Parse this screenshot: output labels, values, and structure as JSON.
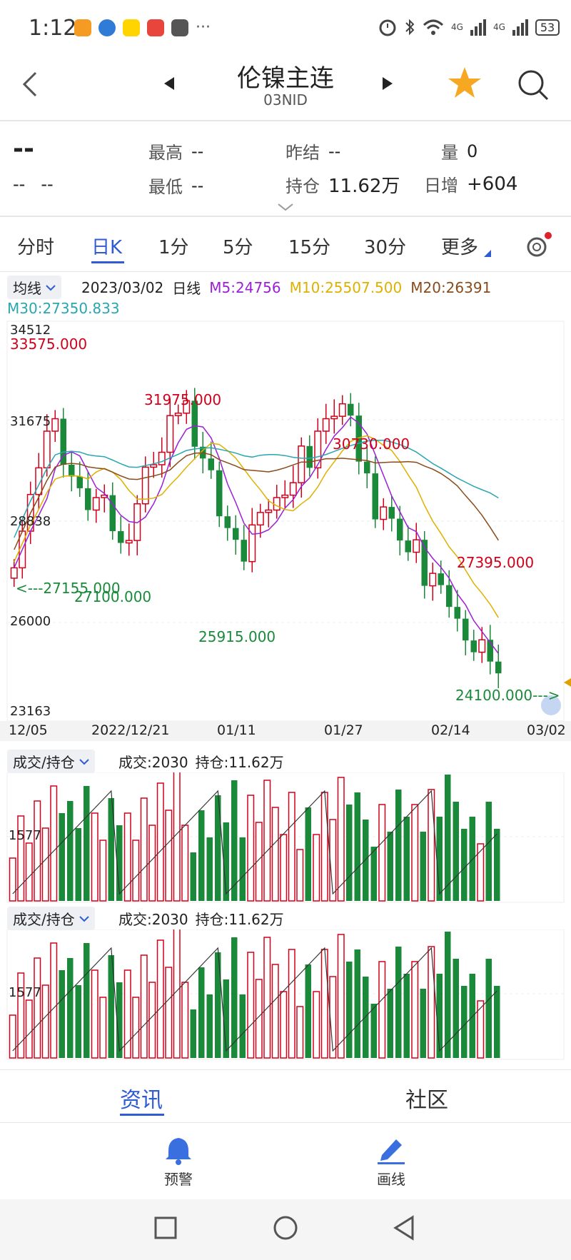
{
  "status_bar": {
    "time": "1:12",
    "app_icons": [
      "video-app",
      "browser-app",
      "meituan-app",
      "notes-app",
      "futures-app"
    ],
    "more": "···",
    "network_1": "4G",
    "network_2": "4G",
    "battery": "53"
  },
  "header": {
    "title": "伦镍主连",
    "code": "03NID"
  },
  "quote": {
    "price": "--",
    "change": "--",
    "change_pct": "--",
    "high_label": "最高",
    "high_value": "--",
    "low_label": "最低",
    "low_value": "--",
    "prev_settle_label": "昨结",
    "prev_settle_value": "--",
    "open_interest_label": "持仓",
    "open_interest_value": "11.62万",
    "volume_label": "量",
    "volume_value": "0",
    "daily_change_label": "日增",
    "daily_change_value": "+604"
  },
  "period_tabs": [
    "分时",
    "日K",
    "1分",
    "5分",
    "15分",
    "30分",
    "更多"
  ],
  "active_tab": "日K",
  "ma_bar": {
    "selector": "均线",
    "date": "2023/03/02",
    "period": "日线",
    "m5": "M5:24756",
    "m10": "M10:25507.500",
    "m20": "M20:26391",
    "m30": "M30:27350.833",
    "m5_color": "#9b1fd6",
    "m10_color": "#e0b000",
    "m20_color": "#8a4a1a",
    "m30_color": "#2aa6b0"
  },
  "kline": {
    "y_ticks": [
      "34512",
      "31675",
      "28838",
      "26000",
      "23163"
    ],
    "x_ticks": [
      "12/05",
      "2022/12/21",
      "01/11",
      "01/27",
      "02/14",
      "03/02"
    ],
    "annotations": {
      "a1": "33575.000",
      "a2": "31975.000",
      "a3": "30730.000",
      "a4": "27395.000",
      "a5": "27155.000",
      "a6": "27100.000",
      "a7": "25915.000",
      "a8": "24100.000"
    }
  },
  "sub_chart_1": {
    "selector": "成交/持仓",
    "volume": "成交:2030",
    "oi": "持仓:11.62万",
    "tick": "1577"
  },
  "sub_chart_2": {
    "selector": "成交/持仓",
    "volume": "成交:2030",
    "oi": "持仓:11.62万",
    "tick": "1577"
  },
  "bottom_tabs": {
    "news": "资讯",
    "community": "社区"
  },
  "toolbar": {
    "alert": "预警",
    "draw": "画线"
  },
  "colors": {
    "up": "#d0021b",
    "down": "#1a8a3a",
    "accent": "#2f5bd3",
    "star": "#f7a823"
  }
}
